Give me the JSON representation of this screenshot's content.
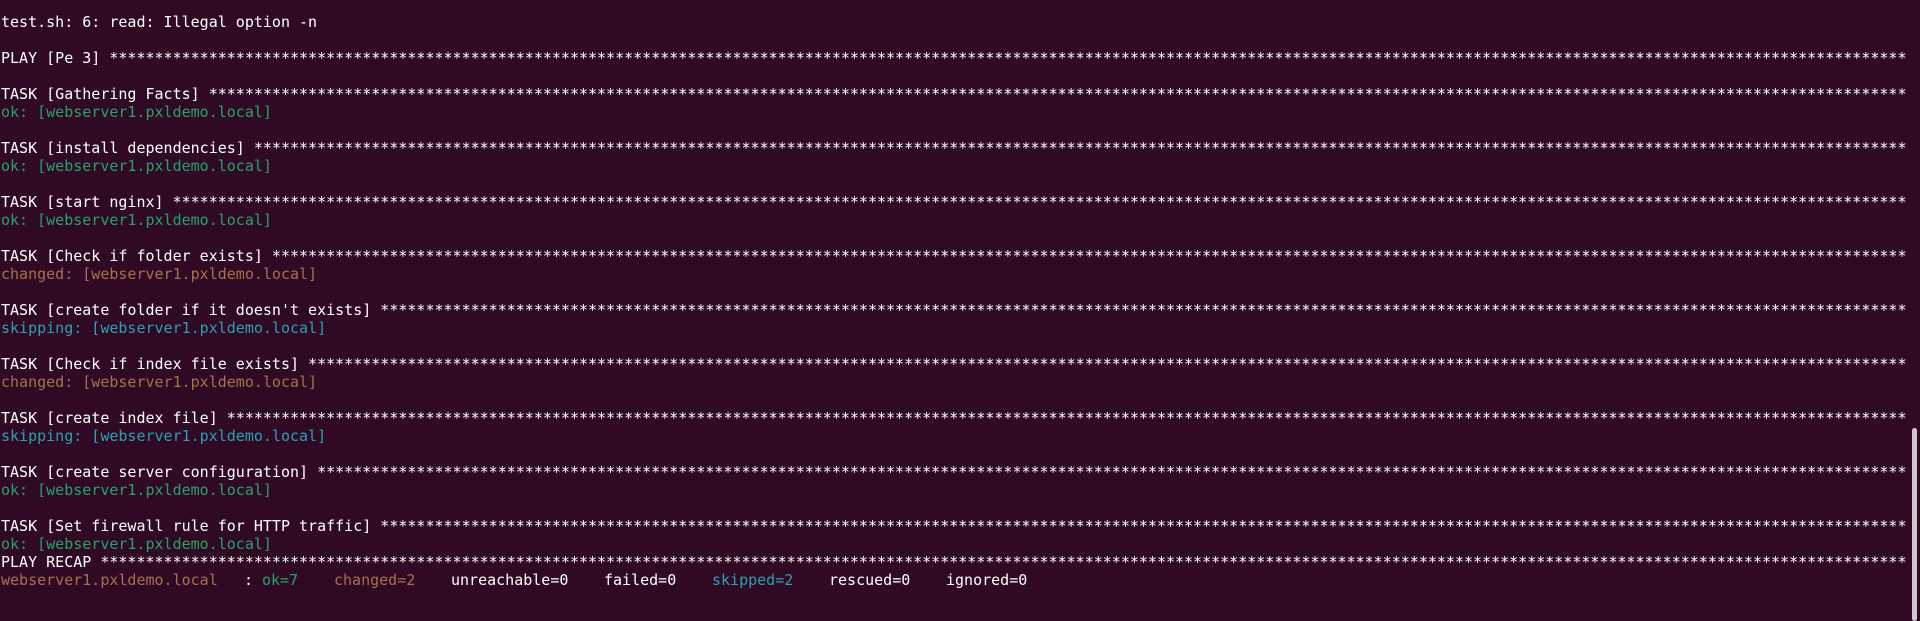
{
  "first_line": {
    "text": "test.sh: 6: read: Illegal option -n"
  },
  "play": {
    "text": "PLAY [Pe 3] *******************************************************************************************************************************************************************************************************"
  },
  "tasks": [
    {
      "header": "TASK [Gathering Facts] ********************************************************************************************************************************************************************************************",
      "result": {
        "text": "ok: [webserver1.pxldemo.local]",
        "color": "#26a269"
      }
    },
    {
      "header": "TASK [install dependencies] ***************************************************************************************************************************************************************************************",
      "result": {
        "text": "ok: [webserver1.pxldemo.local]",
        "color": "#26a269"
      }
    },
    {
      "header": "TASK [start nginx] ************************************************************************************************************************************************************************************************",
      "result": {
        "text": "ok: [webserver1.pxldemo.local]",
        "color": "#26a269"
      }
    },
    {
      "header": "TASK [Check if folder exists] *************************************************************************************************************************************************************************************",
      "result": {
        "text": "changed: [webserver1.pxldemo.local]",
        "color": "#a2734c"
      }
    },
    {
      "header": "TASK [create folder if it doesn't exists] *************************************************************************************************************************************************************************",
      "result": {
        "text": "skipping: [webserver1.pxldemo.local]",
        "color": "#2aa1b3"
      }
    },
    {
      "header": "TASK [Check if index file exists] *********************************************************************************************************************************************************************************",
      "result": {
        "text": "changed: [webserver1.pxldemo.local]",
        "color": "#a2734c"
      }
    },
    {
      "header": "TASK [create index file] ******************************************************************************************************************************************************************************************",
      "result": {
        "text": "skipping: [webserver1.pxldemo.local]",
        "color": "#2aa1b3"
      }
    },
    {
      "header": "TASK [create server configuration] ********************************************************************************************************************************************************************************",
      "result": {
        "text": "ok: [webserver1.pxldemo.local]",
        "color": "#26a269"
      }
    },
    {
      "header": "TASK [Set firewall rule for HTTP traffic] *************************************************************************************************************************************************************************",
      "result": {
        "text": "ok: [webserver1.pxldemo.local]",
        "color": "#26a269"
      }
    }
  ],
  "recap": {
    "header": "PLAY RECAP ********************************************************************************************************************************************************************************************************",
    "items": [
      {
        "text": "webserver1.pxldemo.local",
        "color": "#a2734c"
      },
      {
        "text": ":",
        "color": "#ffffff"
      },
      {
        "text": "ok=7",
        "color": "#26a269"
      },
      {
        "text": "changed=2",
        "color": "#a2734c"
      },
      {
        "text": "unreachable=0",
        "color": "#ffffff"
      },
      {
        "text": "failed=0",
        "color": "#ffffff"
      },
      {
        "text": "skipped=2",
        "color": "#2aa1b3"
      },
      {
        "text": "rescued=0",
        "color": "#ffffff"
      },
      {
        "text": "ignored=0",
        "color": "#ffffff"
      }
    ]
  }
}
